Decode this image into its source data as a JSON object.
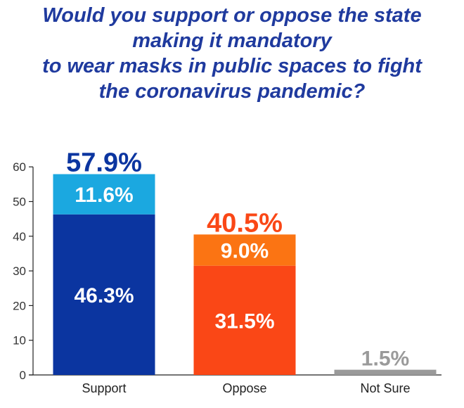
{
  "chart_data": {
    "type": "bar",
    "stacked": true,
    "title": [
      "Would you support or oppose the state",
      "making it mandatory",
      "to wear masks in public spaces to fight",
      "the coronavirus pandemic?"
    ],
    "categories": [
      "Support",
      "Oppose",
      "Not Sure"
    ],
    "series": [
      {
        "values": [
          46.3,
          31.5,
          1.5
        ],
        "labels": [
          "46.3%",
          "31.5%",
          ""
        ]
      },
      {
        "values": [
          11.6,
          9.0,
          0
        ],
        "labels": [
          "11.6%",
          "9.0%",
          ""
        ]
      }
    ],
    "totals": [
      57.9,
      40.5,
      1.5
    ],
    "total_labels": [
      "57.9%",
      "40.5%",
      "1.5%"
    ],
    "colors": {
      "bottom": [
        "#0b35a0",
        "#fa4716",
        "#9a9a9a"
      ],
      "top": [
        "#1ba8e0",
        "#fb7413",
        "#9a9a9a"
      ],
      "total_text": [
        "#0b35a0",
        "#fa4716",
        "#9a9a9a"
      ],
      "title": "#1f3a9e"
    },
    "ylim": [
      0,
      60
    ],
    "yticks": [
      0,
      10,
      20,
      30,
      40,
      50,
      60
    ],
    "grid": false,
    "xlabel": "",
    "ylabel": ""
  }
}
